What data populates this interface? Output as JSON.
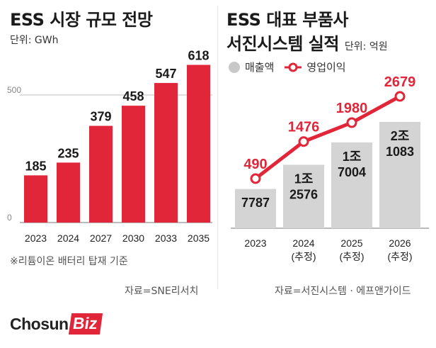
{
  "left": {
    "title": "ESS 시장 규모 전망",
    "unit": "단위: GWh",
    "note": "※리튬이온 배터리 탑재 기준",
    "source": "자료=SNE리서치"
  },
  "right": {
    "title_line1": "ESS 대표 부품사",
    "title_line2": "서진시스템 실적",
    "unit": "단위: 억원",
    "legend": [
      {
        "label": "매출액",
        "color": "#c8c8c8",
        "icon": "gray-circle-icon"
      },
      {
        "label": "영업이익",
        "color": "#e2263a",
        "icon": "red-line-marker-icon"
      }
    ],
    "source": "자료=서진시스템 · 에프앤가이드"
  },
  "logo": {
    "chosun": "Chosun",
    "biz": "Biz"
  },
  "colors": {
    "red": "#e2263a",
    "gray_bar": "#d4d4d4",
    "text": "#222222"
  },
  "chart_data": [
    {
      "type": "bar",
      "title": "ESS 시장 규모 전망",
      "ylabel": "단위: GWh",
      "categories": [
        "2023",
        "2024",
        "2027",
        "2030",
        "2033",
        "2035"
      ],
      "values": [
        185,
        235,
        379,
        458,
        547,
        618
      ],
      "value_labels": [
        "185",
        "235",
        "379",
        "458",
        "547",
        "618"
      ],
      "yticks": [
        "0",
        "500"
      ],
      "ylim": [
        0,
        650
      ],
      "grid": "horizontal at 500",
      "color": "#e2263a"
    },
    {
      "type": "bar+line",
      "title": "서진시스템 실적",
      "ylabel": "단위: 억원",
      "categories": [
        {
          "year": "2023",
          "sub": ""
        },
        {
          "year": "2024",
          "sub": "(추정)"
        },
        {
          "year": "2025",
          "sub": "(추정)"
        },
        {
          "year": "2026",
          "sub": "(추정)"
        }
      ],
      "series": [
        {
          "name": "매출액",
          "type": "bar",
          "values": [
            7787,
            12576,
            17004,
            21083
          ],
          "labels": [
            [
              "7787"
            ],
            [
              "1조",
              "2576"
            ],
            [
              "1조",
              "7004"
            ],
            [
              "2조",
              "1083"
            ]
          ],
          "color": "#d4d4d4"
        },
        {
          "name": "영업이익",
          "type": "line",
          "values": [
            490,
            1476,
            1980,
            2679
          ],
          "labels": [
            "490",
            "1476",
            "1980",
            "2679"
          ],
          "color": "#e2263a"
        }
      ]
    }
  ]
}
